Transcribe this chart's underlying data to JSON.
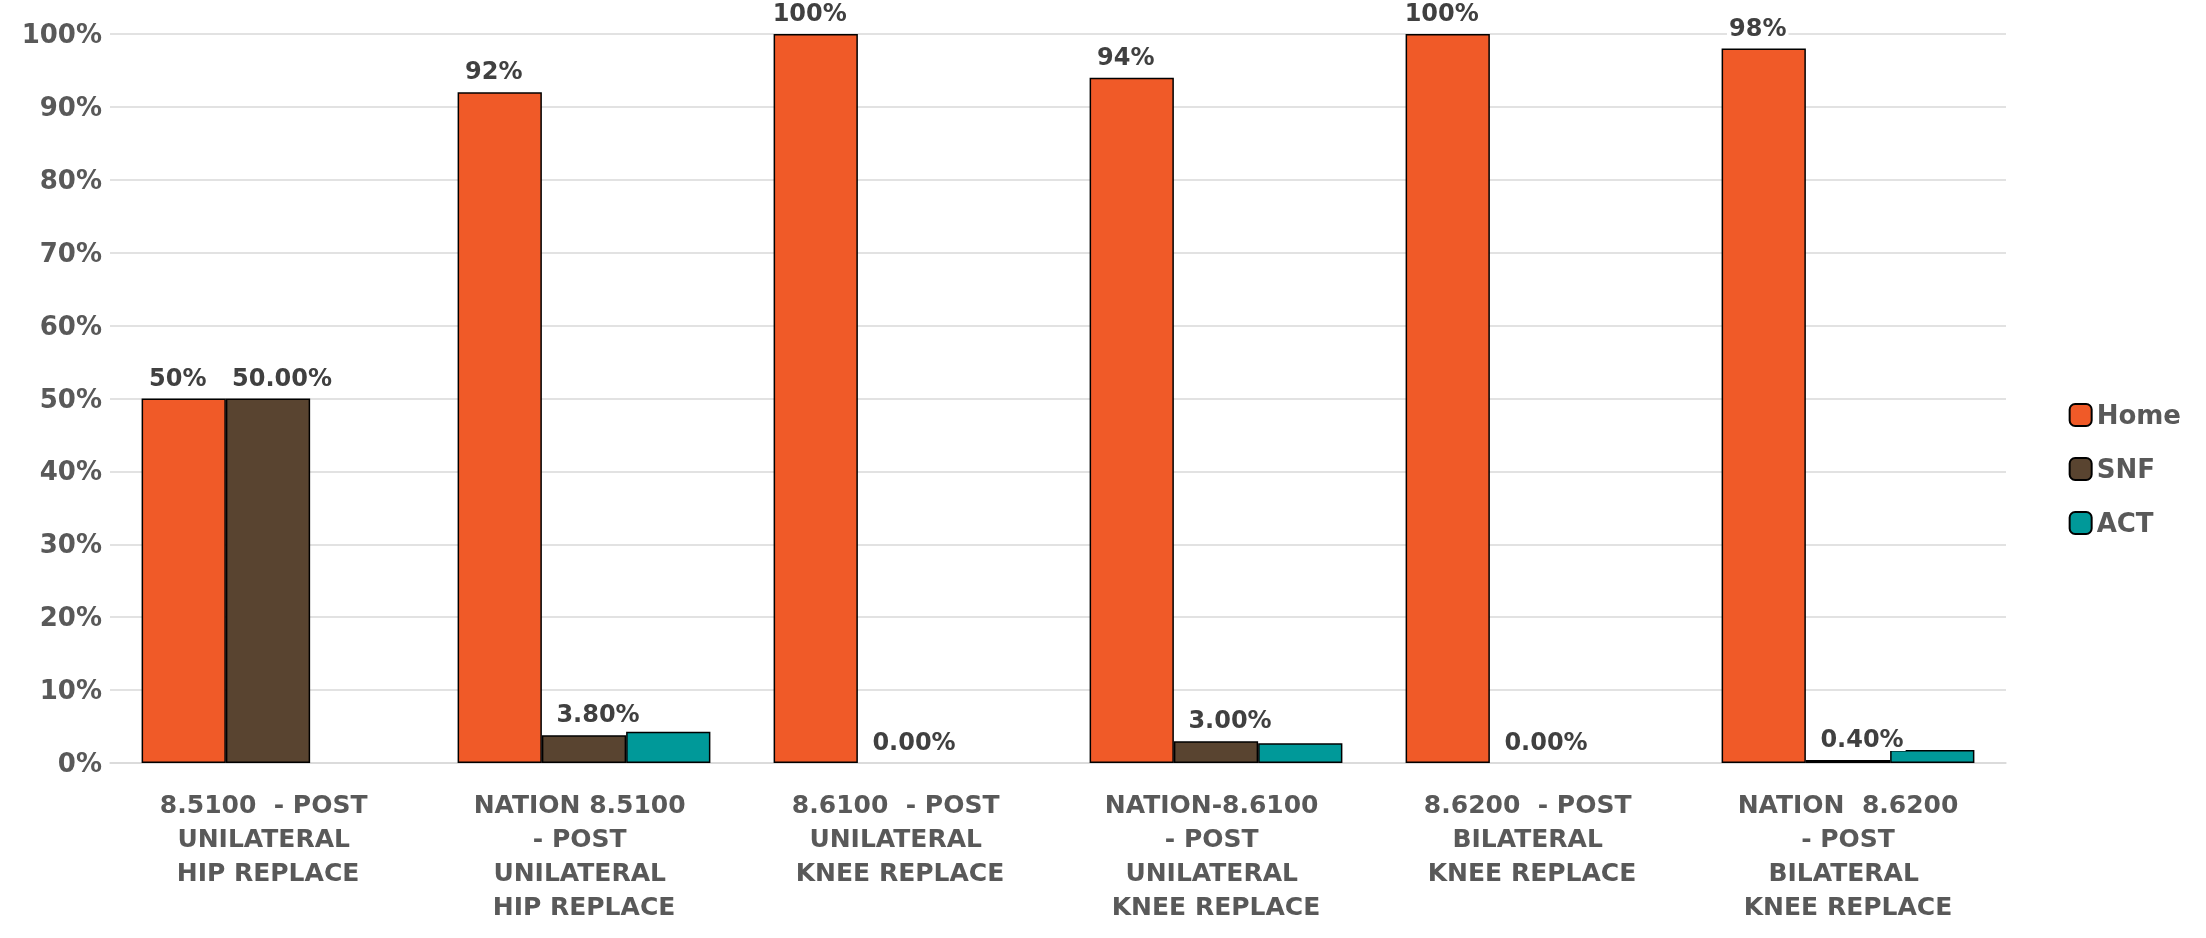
{
  "chart_data": {
    "type": "bar",
    "categories": [
      "8.5100  - POST UNILATERAL HIP REPLACE",
      "NATION 8.5100 - POST UNILATERAL HIP REPLACE",
      "8.6100  - POST UNILATERAL KNEE REPLACE",
      "NATION-8.6100 - POST UNILATERAL KNEE REPLACE",
      "8.6200  - POST BILATERAL KNEE REPLACE",
      "NATION  8.6200 - POST BILATERAL KNEE REPLACE"
    ],
    "series": [
      {
        "name": "Home",
        "color": "#f05a28",
        "values": [
          50,
          92,
          100,
          94,
          100,
          98
        ],
        "value_labels": [
          "50%",
          "92%",
          "100%",
          "94%",
          "100%",
          "98%"
        ]
      },
      {
        "name": "SNF",
        "color": "#594430",
        "values": [
          50,
          3.8,
          0,
          3,
          0,
          0.4
        ],
        "value_labels": [
          "50.00%",
          "3.80%",
          "0.00%",
          "3.00%",
          "0.00%",
          "0.40%"
        ]
      },
      {
        "name": "ACT",
        "color": "#009999",
        "values": [
          null,
          4.3,
          null,
          2.7,
          null,
          1.8
        ]
      }
    ],
    "ylim": [
      0,
      100
    ],
    "yticks": [
      {
        "value": 0,
        "label": "0%"
      },
      {
        "value": 10,
        "label": "10%"
      },
      {
        "value": 20,
        "label": "20%"
      },
      {
        "value": 30,
        "label": "30%"
      },
      {
        "value": 40,
        "label": "40%"
      },
      {
        "value": 50,
        "label": "50%"
      },
      {
        "value": 60,
        "label": "60%"
      },
      {
        "value": 70,
        "label": "70%"
      },
      {
        "value": 80,
        "label": "80%"
      },
      {
        "value": 90,
        "label": "90%"
      },
      {
        "value": 100,
        "label": "100%"
      }
    ],
    "grid": "y",
    "legend": "right"
  }
}
